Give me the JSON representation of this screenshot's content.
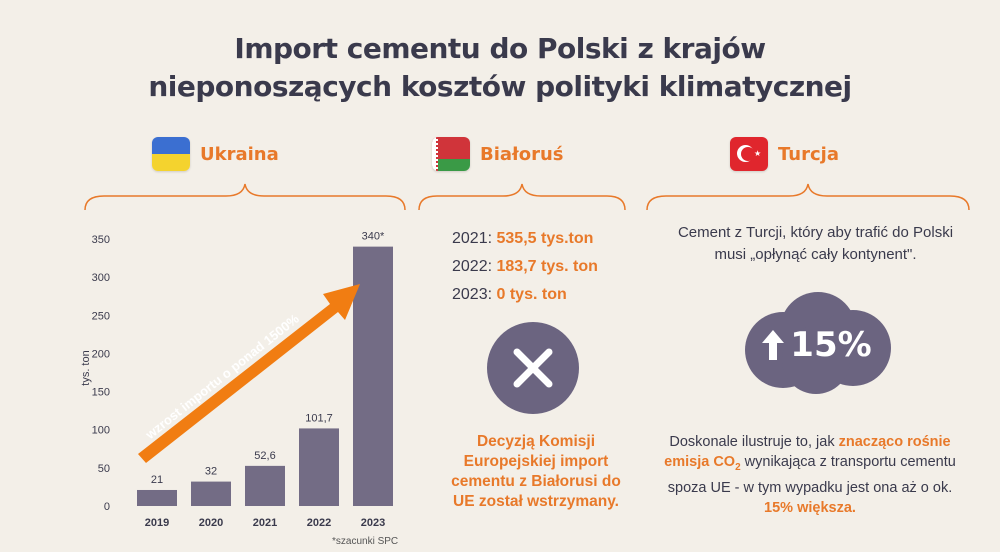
{
  "title_line1": "Import cementu do Polski z krajów",
  "title_line2": "nieponoszących kosztów polityki klimatycznej",
  "colors": {
    "accent": "#e8792a",
    "bar": "#736c85",
    "text": "#3a3a4c",
    "background": "#f3efe8"
  },
  "ukraine": {
    "label": "Ukraina",
    "flag_icon": "ukraine-flag-icon"
  },
  "belarus": {
    "label": "Białoruś",
    "flag_icon": "belarus-flag-icon",
    "years": [
      {
        "year": "2021:",
        "value": "535,5 tys.ton"
      },
      {
        "year": "2022:",
        "value": "183,7 tys. ton"
      },
      {
        "year": "2023:",
        "value": "0 tys. ton"
      }
    ],
    "icon": "x-icon",
    "decision_text": "Decyzją Komisji Europejskiej import cementu z Białorusi do UE został wstrzymany."
  },
  "turkey": {
    "label": "Turcja",
    "flag_icon": "turkey-flag-icon",
    "intro_line1": "Cement z Turcji, który aby trafić do Polski",
    "intro_line2": "musi „opłynąć cały kontynent\".",
    "cloud_value": "15%",
    "cloud_icon": "arrow-up-icon",
    "desc_part1": "Doskonale ilustruje to, jak ",
    "desc_hl1": "znacząco rośnie emisja CO",
    "desc_sub": "2",
    "desc_part2": " wynikająca z transportu cementu spoza UE - w tym wypadku jest ona aż o ok. ",
    "desc_hl2": "15% większa."
  },
  "chart_data": {
    "type": "bar",
    "categories": [
      "2019",
      "2020",
      "2021",
      "2022",
      "2023"
    ],
    "values": [
      21,
      32,
      52.6,
      101.7,
      340
    ],
    "value_labels": [
      "21",
      "32",
      "52,6",
      "101,7",
      "340*"
    ],
    "ylabel": "tys. ton",
    "ylim": [
      0,
      350
    ],
    "yticks": [
      0,
      50,
      100,
      150,
      200,
      250,
      300,
      350
    ],
    "grid": false,
    "annotation": "wzrost importu o ponad 1500%"
  },
  "footnote": "*szacunki SPC"
}
